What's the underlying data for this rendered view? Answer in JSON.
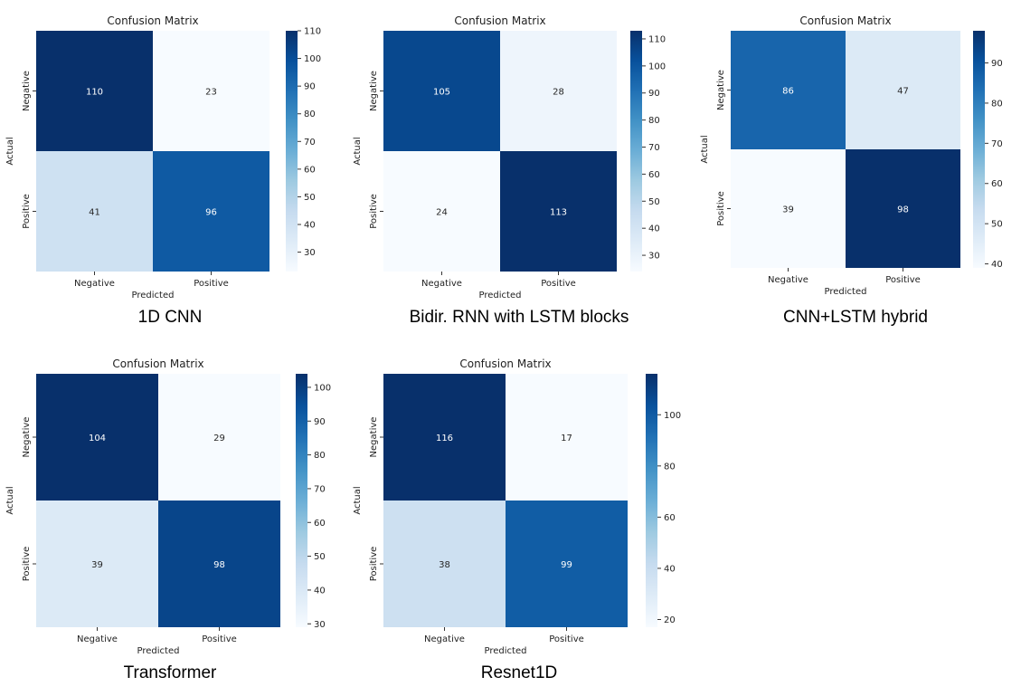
{
  "chart_data": [
    {
      "type": "heatmap",
      "title": "Confusion Matrix",
      "caption": "1D CNN",
      "xlabel": "Predicted",
      "ylabel": "Actual",
      "x_categories": [
        "Negative",
        "Positive"
      ],
      "y_categories": [
        "Negative",
        "Positive"
      ],
      "values": [
        [
          110,
          23
        ],
        [
          41,
          96
        ]
      ],
      "colormap": "Blues",
      "color_range": [
        23,
        110
      ],
      "colorbar_ticks": [
        30,
        40,
        50,
        60,
        70,
        80,
        90,
        100,
        110
      ]
    },
    {
      "type": "heatmap",
      "title": "Confusion Matrix",
      "caption": "Bidir. RNN with LSTM blocks",
      "xlabel": "Predicted",
      "ylabel": "Actual",
      "x_categories": [
        "Negative",
        "Positive"
      ],
      "y_categories": [
        "Negative",
        "Positive"
      ],
      "values": [
        [
          105,
          28
        ],
        [
          24,
          113
        ]
      ],
      "colormap": "Blues",
      "color_range": [
        24,
        113
      ],
      "colorbar_ticks": [
        30,
        40,
        50,
        60,
        70,
        80,
        90,
        100,
        110
      ]
    },
    {
      "type": "heatmap",
      "title": "Confusion Matrix",
      "caption": "CNN+LSTM hybrid",
      "xlabel": "Predicted",
      "ylabel": "Actual",
      "x_categories": [
        "Negative",
        "Positive"
      ],
      "y_categories": [
        "Negative",
        "Positive"
      ],
      "values": [
        [
          86,
          47
        ],
        [
          39,
          98
        ]
      ],
      "colormap": "Blues",
      "color_range": [
        39,
        98
      ],
      "colorbar_ticks": [
        40,
        50,
        60,
        70,
        80,
        90
      ]
    },
    {
      "type": "heatmap",
      "title": "Confusion Matrix",
      "caption": "Transformer",
      "xlabel": "Predicted",
      "ylabel": "Actual",
      "x_categories": [
        "Negative",
        "Positive"
      ],
      "y_categories": [
        "Negative",
        "Positive"
      ],
      "values": [
        [
          104,
          29
        ],
        [
          39,
          98
        ]
      ],
      "colormap": "Blues",
      "color_range": [
        29,
        104
      ],
      "colorbar_ticks": [
        30,
        40,
        50,
        60,
        70,
        80,
        90,
        100
      ]
    },
    {
      "type": "heatmap",
      "title": "Confusion Matrix",
      "caption": "Resnet1D",
      "xlabel": "Predicted",
      "ylabel": "Actual",
      "x_categories": [
        "Negative",
        "Positive"
      ],
      "y_categories": [
        "Negative",
        "Positive"
      ],
      "values": [
        [
          116,
          17
        ],
        [
          38,
          99
        ]
      ],
      "colormap": "Blues",
      "color_range": [
        17,
        116
      ],
      "colorbar_ticks": [
        20,
        40,
        60,
        80,
        100
      ]
    }
  ]
}
